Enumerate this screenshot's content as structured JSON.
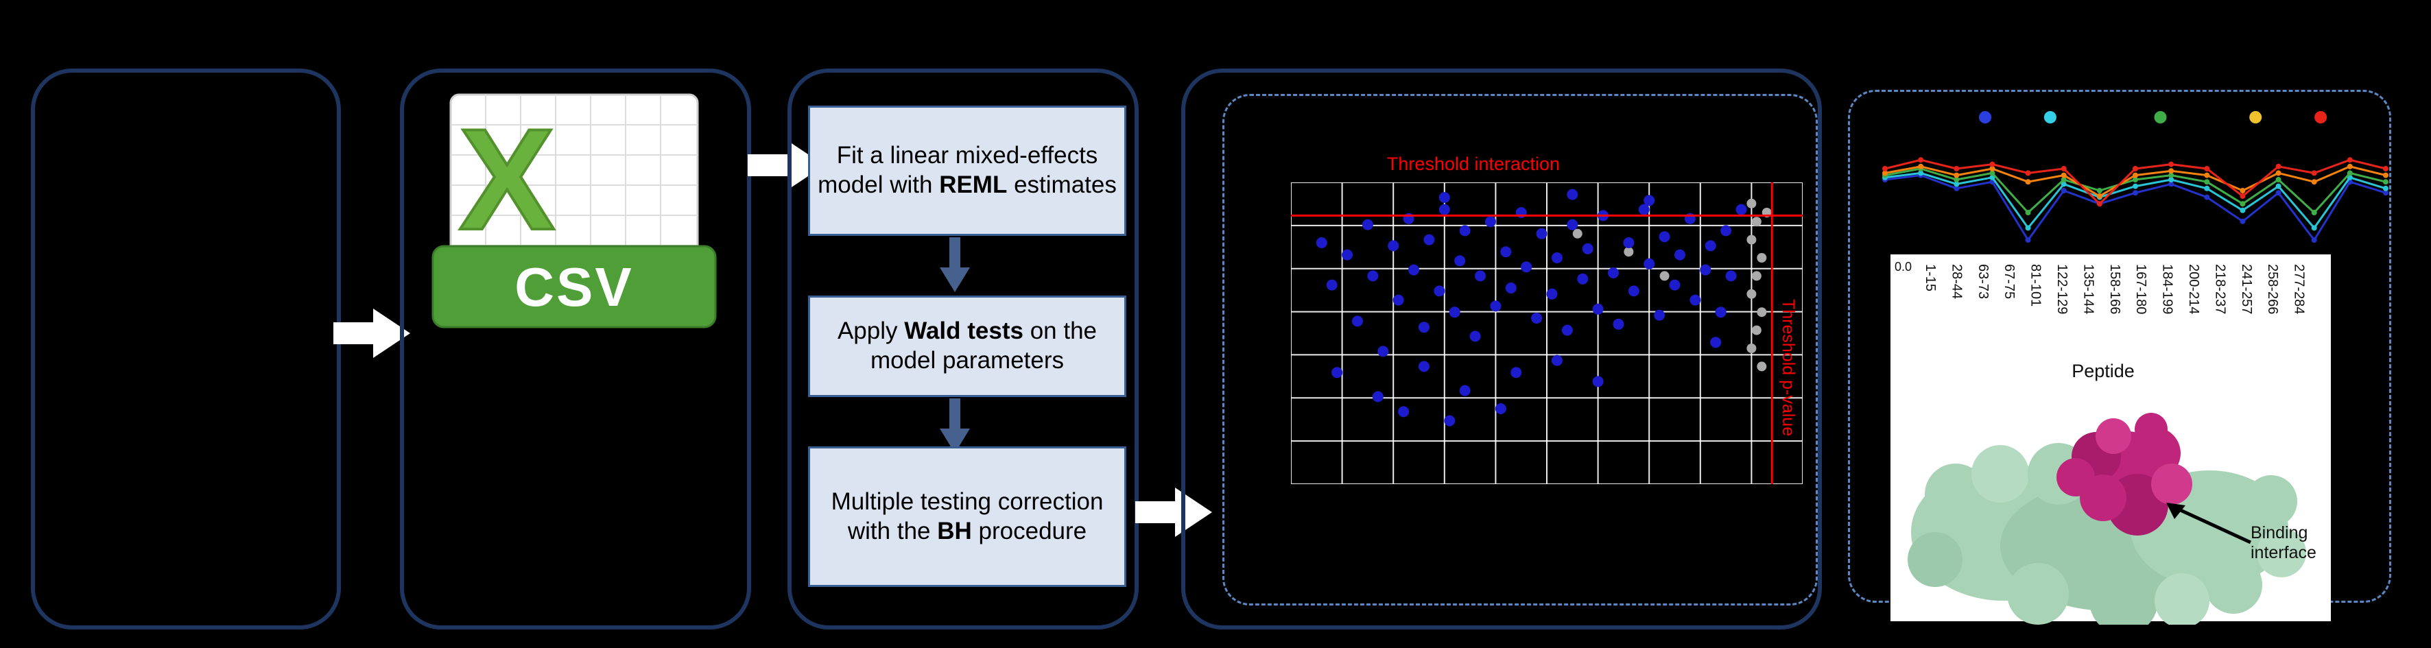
{
  "colors": {
    "background": "#000000",
    "panel_border": "#1e3560",
    "dashed_border": "#5b87c5",
    "process_box_fill": "#dce4f2",
    "process_box_border": "#3a5f94",
    "flow_arrow_white": "#ffffff",
    "down_arrow_blue": "#46618e",
    "threshold_red": "#ff0000",
    "scatter_point_blue": "#1c1ccd",
    "scatter_point_gray": "#ababab",
    "csv_banner_green": "#4f9e38",
    "csv_x_green": "#6ab23e",
    "protein_green": "#a8d3b6",
    "protein_magenta": "#c0257c"
  },
  "panel2": {
    "csv_label": "CSV",
    "x_label": "X"
  },
  "panel3": {
    "box1": {
      "prefix": "Fit a linear mixed-effects model with ",
      "bold": "REML",
      "suffix": " estimates"
    },
    "box2": {
      "prefix": "Apply ",
      "bold": "Wald tests",
      "suffix": " on the model parameters"
    },
    "box3": {
      "line1": "Multiple testing correction",
      "line2_prefix": "with the ",
      "line2_bold": "BH",
      "line2_suffix": " procedure"
    }
  },
  "panel4": {
    "threshold_interaction_label": "Threshold interaction",
    "threshold_pvalue_label": "Threshold p-value",
    "scatter": {
      "grid_cols": 10,
      "grid_rows": 7,
      "threshold_y": 0.11,
      "threshold_x": 0.94,
      "blue_points": [
        [
          0.06,
          0.2
        ],
        [
          0.08,
          0.34
        ],
        [
          0.11,
          0.24
        ],
        [
          0.13,
          0.46
        ],
        [
          0.15,
          0.14
        ],
        [
          0.16,
          0.31
        ],
        [
          0.18,
          0.56
        ],
        [
          0.2,
          0.21
        ],
        [
          0.21,
          0.39
        ],
        [
          0.23,
          0.12
        ],
        [
          0.24,
          0.29
        ],
        [
          0.26,
          0.48
        ],
        [
          0.27,
          0.19
        ],
        [
          0.29,
          0.36
        ],
        [
          0.3,
          0.09
        ],
        [
          0.32,
          0.43
        ],
        [
          0.33,
          0.26
        ],
        [
          0.34,
          0.16
        ],
        [
          0.36,
          0.51
        ],
        [
          0.37,
          0.31
        ],
        [
          0.39,
          0.13
        ],
        [
          0.4,
          0.41
        ],
        [
          0.42,
          0.23
        ],
        [
          0.43,
          0.35
        ],
        [
          0.45,
          0.1
        ],
        [
          0.46,
          0.28
        ],
        [
          0.48,
          0.45
        ],
        [
          0.49,
          0.17
        ],
        [
          0.51,
          0.37
        ],
        [
          0.52,
          0.25
        ],
        [
          0.54,
          0.49
        ],
        [
          0.55,
          0.14
        ],
        [
          0.57,
          0.32
        ],
        [
          0.58,
          0.22
        ],
        [
          0.6,
          0.42
        ],
        [
          0.61,
          0.11
        ],
        [
          0.63,
          0.3
        ],
        [
          0.64,
          0.47
        ],
        [
          0.66,
          0.2
        ],
        [
          0.67,
          0.36
        ],
        [
          0.69,
          0.09
        ],
        [
          0.7,
          0.27
        ],
        [
          0.72,
          0.44
        ],
        [
          0.73,
          0.18
        ],
        [
          0.75,
          0.34
        ],
        [
          0.76,
          0.24
        ],
        [
          0.78,
          0.12
        ],
        [
          0.79,
          0.39
        ],
        [
          0.81,
          0.29
        ],
        [
          0.82,
          0.21
        ],
        [
          0.09,
          0.63
        ],
        [
          0.17,
          0.71
        ],
        [
          0.26,
          0.61
        ],
        [
          0.34,
          0.69
        ],
        [
          0.22,
          0.76
        ],
        [
          0.31,
          0.79
        ],
        [
          0.44,
          0.63
        ],
        [
          0.52,
          0.59
        ],
        [
          0.6,
          0.66
        ],
        [
          0.41,
          0.75
        ],
        [
          0.85,
          0.16
        ],
        [
          0.86,
          0.31
        ],
        [
          0.84,
          0.43
        ],
        [
          0.88,
          0.09
        ],
        [
          0.83,
          0.53
        ],
        [
          0.3,
          0.05
        ],
        [
          0.55,
          0.04
        ],
        [
          0.7,
          0.06
        ]
      ],
      "gray_points": [
        [
          0.9,
          0.07
        ],
        [
          0.91,
          0.13
        ],
        [
          0.9,
          0.19
        ],
        [
          0.92,
          0.25
        ],
        [
          0.91,
          0.31
        ],
        [
          0.9,
          0.37
        ],
        [
          0.92,
          0.43
        ],
        [
          0.91,
          0.49
        ],
        [
          0.9,
          0.55
        ],
        [
          0.66,
          0.23
        ],
        [
          0.56,
          0.17
        ],
        [
          0.73,
          0.31
        ],
        [
          0.93,
          0.1
        ],
        [
          0.92,
          0.61
        ]
      ]
    }
  },
  "panel5": {
    "y_tick": "0.0",
    "peptide_axis_label": "Peptide",
    "peptide_labels": [
      "1-15",
      "28-44",
      "63-73",
      "67-75",
      "81-101",
      "122-129",
      "135-144",
      "158-166",
      "167-180",
      "184-199",
      "200-214",
      "218-237",
      "241-257",
      "258-266",
      "277-284"
    ],
    "binding_interface_label": "Binding interface",
    "line_chart": {
      "marker_dots": [
        {
          "color": "#2b3fe0",
          "x": 0.2
        },
        {
          "color": "#35d0e8",
          "x": 0.33
        },
        {
          "color": "#3fae49",
          "x": 0.55
        },
        {
          "color": "#f2c12e",
          "x": 0.74
        },
        {
          "color": "#e8231a",
          "x": 0.87
        }
      ],
      "series": [
        {
          "name": "blue",
          "color": "#2233cc",
          "values": [
            0.4,
            0.36,
            0.48,
            0.42,
            0.95,
            0.5,
            0.62,
            0.52,
            0.44,
            0.56,
            0.78,
            0.52,
            0.95,
            0.42,
            0.52
          ]
        },
        {
          "name": "cyan",
          "color": "#29c5d6",
          "values": [
            0.38,
            0.34,
            0.44,
            0.38,
            0.84,
            0.44,
            0.56,
            0.46,
            0.4,
            0.48,
            0.68,
            0.46,
            0.84,
            0.38,
            0.48
          ]
        },
        {
          "name": "green",
          "color": "#3fae49",
          "values": [
            0.36,
            0.3,
            0.4,
            0.34,
            0.7,
            0.4,
            0.5,
            0.4,
            0.36,
            0.42,
            0.62,
            0.4,
            0.7,
            0.34,
            0.42
          ]
        },
        {
          "name": "orange",
          "color": "#f5820d",
          "values": [
            0.34,
            0.28,
            0.36,
            0.3,
            0.42,
            0.36,
            0.55,
            0.36,
            0.32,
            0.36,
            0.5,
            0.34,
            0.42,
            0.28,
            0.36
          ]
        },
        {
          "name": "red",
          "color": "#e8231a",
          "values": [
            0.3,
            0.22,
            0.3,
            0.26,
            0.34,
            0.3,
            0.62,
            0.3,
            0.26,
            0.3,
            0.55,
            0.28,
            0.34,
            0.22,
            0.3
          ]
        }
      ]
    }
  }
}
